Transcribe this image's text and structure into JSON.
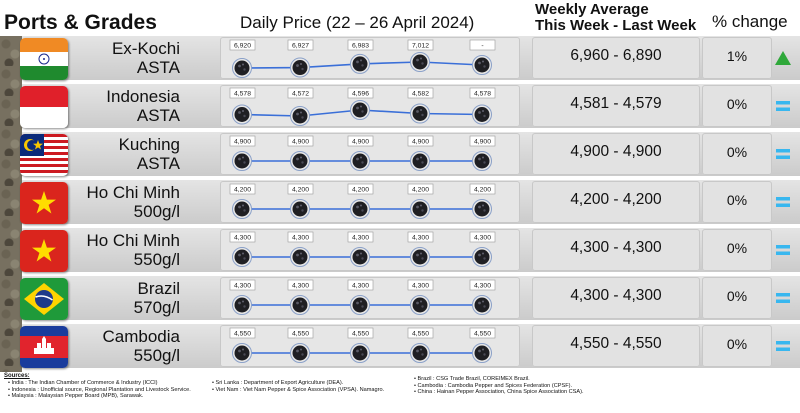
{
  "header": {
    "ports_grades": "Ports & Grades",
    "daily_price": "Daily Price (22 – 26 April 2024)",
    "weekly_line1": "Weekly Average",
    "weekly_line2": "This Week - Last Week",
    "pct_change": "% change"
  },
  "rows": [
    {
      "port_line1": "Ex-Kochi",
      "port_line2": "ASTA",
      "flag": "india-flag",
      "weekly": "6,960 - 6,890",
      "pct": "1%",
      "trend": "up-triangle-icon"
    },
    {
      "port_line1": "Indonesia",
      "port_line2": "ASTA",
      "flag": "indonesia-flag",
      "weekly": "4,581 - 4,579",
      "pct": "0%",
      "trend": "equals-icon"
    },
    {
      "port_line1": "Kuching",
      "port_line2": "ASTA",
      "flag": "malaysia-flag",
      "weekly": "4,900 - 4,900",
      "pct": "0%",
      "trend": "equals-icon"
    },
    {
      "port_line1": "Ho Chi Minh",
      "port_line2": "500g/l",
      "flag": "vietnam-flag",
      "weekly": "4,200 - 4,200",
      "pct": "0%",
      "trend": "equals-icon"
    },
    {
      "port_line1": "Ho Chi Minh",
      "port_line2": "550g/l",
      "flag": "vietnam-flag",
      "weekly": "4,300 - 4,300",
      "pct": "0%",
      "trend": "equals-icon"
    },
    {
      "port_line1": "Brazil",
      "port_line2": "570g/l",
      "flag": "brazil-flag",
      "weekly": "4,300 - 4,300",
      "pct": "0%",
      "trend": "equals-icon"
    },
    {
      "port_line1": "Cambodia",
      "port_line2": "550g/l",
      "flag": "cambodia-flag",
      "weekly": "4,550 - 4,550",
      "pct": "0%",
      "trend": "equals-icon"
    }
  ],
  "chart_data": {
    "type": "line",
    "title": "Daily Price (22 – 26 April 2024)",
    "series": [
      {
        "name": "Ex-Kochi ASTA",
        "values": [
          6920,
          6927,
          6983,
          7012,
          null
        ],
        "labels": [
          "6,920",
          "6,927",
          "6,983",
          "7,012",
          "-"
        ]
      },
      {
        "name": "Indonesia ASTA",
        "values": [
          4578,
          4572,
          4596,
          4582,
          4578
        ],
        "labels": [
          "4,578",
          "4,572",
          "4,596",
          "4,582",
          "4,578"
        ]
      },
      {
        "name": "Kuching ASTA",
        "values": [
          4900,
          4900,
          4900,
          4900,
          4900
        ],
        "labels": [
          "4,900",
          "4,900",
          "4,900",
          "4,900",
          "4,900"
        ]
      },
      {
        "name": "Ho Chi Minh 500g/l",
        "values": [
          4200,
          4200,
          4200,
          4200,
          4200
        ],
        "labels": [
          "4,200",
          "4,200",
          "4,200",
          "4,200",
          "4,200"
        ]
      },
      {
        "name": "Ho Chi Minh 550g/l",
        "values": [
          4300,
          4300,
          4300,
          4300,
          4300
        ],
        "labels": [
          "4,300",
          "4,300",
          "4,300",
          "4,300",
          "4,300"
        ]
      },
      {
        "name": "Brazil 570g/l",
        "values": [
          4300,
          4300,
          4300,
          4300,
          4300
        ],
        "labels": [
          "4,300",
          "4,300",
          "4,300",
          "4,300",
          "4,300"
        ]
      },
      {
        "name": "Cambodia 550g/l",
        "values": [
          4550,
          4550,
          4550,
          4550,
          4550
        ],
        "labels": [
          "4,550",
          "4,550",
          "4,550",
          "4,550",
          "4,550"
        ]
      }
    ],
    "line_color": "#3a6fd8",
    "marker": "pepper-icon"
  },
  "sources": {
    "title": "Sources:",
    "col1": [
      "India : The Indian Chamber of Commerce & Industry (ICCI)",
      "Indonesia : Unofficial source, Regional Plantation and Livestock Service.",
      "Malaysia : Malaysian Pepper Board (MPB), Sarawak."
    ],
    "col2": [
      "Sri Lanka : Department of Export Agriculture (DEA).",
      "Viet Nam : Viet Nam Pepper & Spice Association (VPSA). Namagro."
    ],
    "col3": [
      "Brazil : CSG Trade Brazil, COREIMEX Brazil.",
      "Cambodia : Cambodia Pepper and Spices Federation (CPSF).",
      "China : Hainan Pepper Association, China Spice Association CSA)."
    ]
  },
  "colors": {
    "up": "#2fa83a",
    "equal": "#38b7ef",
    "band": "#d6d6d6"
  }
}
